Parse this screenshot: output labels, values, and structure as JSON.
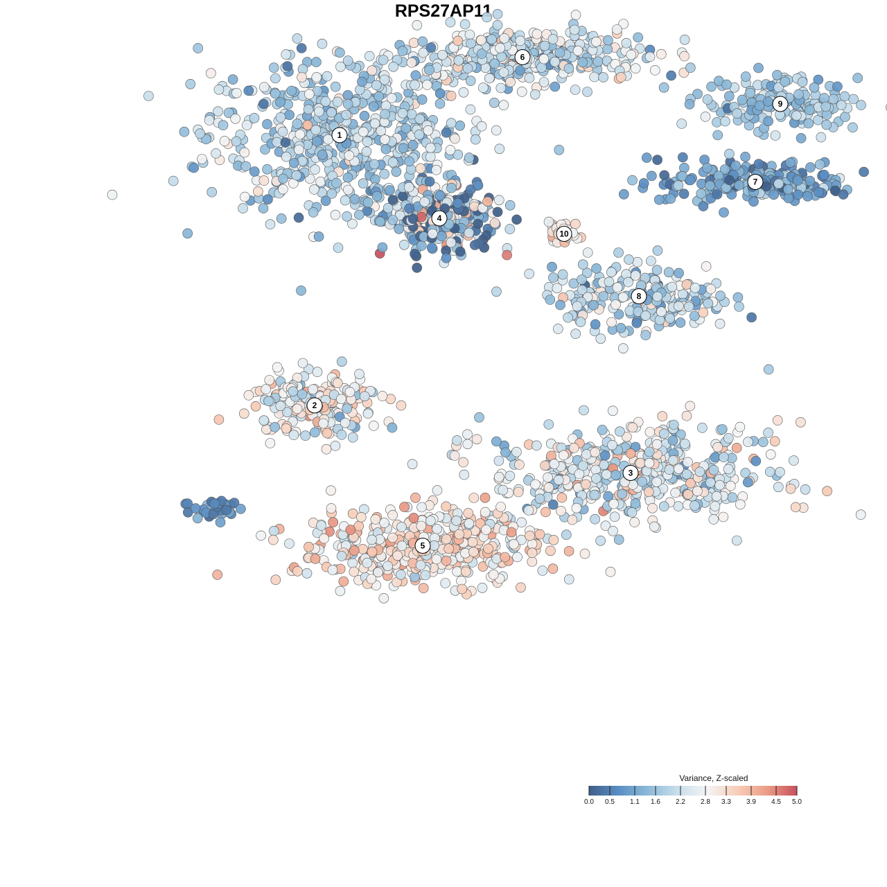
{
  "chart_data": {
    "type": "scatter",
    "title": "RPS27AP11",
    "subtitle": "",
    "xlabel": "",
    "ylabel": "",
    "grid": false,
    "axes_visible": false,
    "color_variable": "Variance, Z-scaled",
    "color_range": [
      0.0,
      5.0
    ],
    "legend": {
      "title": "Variance, Z-scaled",
      "placement": "bottom-right",
      "ticks": [
        "0.0",
        "0.5",
        "1.1",
        "1.6",
        "2.2",
        "2.8",
        "3.3",
        "3.9",
        "4.5",
        "5.0"
      ],
      "tick_values": [
        0.0,
        0.5,
        1.1,
        1.6,
        2.2,
        2.8,
        3.3,
        3.9,
        4.5,
        5.0
      ]
    },
    "colorscale": [
      "#3f5f8a",
      "#5b8fc4",
      "#8dbad9",
      "#c9dfec",
      "#f4f4f4",
      "#f7cdb8",
      "#eb9c85",
      "#c6505e"
    ],
    "clusters": [
      {
        "label": "1",
        "x": -1.0,
        "y": 6.6,
        "sx": 1.3,
        "sy": 1.2,
        "n": 560,
        "mean": 1.9,
        "spread": 0.6
      },
      {
        "label": "6",
        "x": 1.2,
        "y": 8.1,
        "sx": 1.2,
        "sy": 0.45,
        "n": 380,
        "mean": 2.2,
        "spread": 0.6
      },
      {
        "label": "9",
        "x": 4.3,
        "y": 7.2,
        "sx": 0.75,
        "sy": 0.4,
        "n": 160,
        "mean": 1.6,
        "spread": 0.4
      },
      {
        "label": "7",
        "x": 4.0,
        "y": 5.7,
        "sx": 1.0,
        "sy": 0.35,
        "n": 210,
        "mean": 1.0,
        "spread": 0.5
      },
      {
        "label": "4",
        "x": 0.2,
        "y": 5.0,
        "sx": 0.55,
        "sy": 0.55,
        "n": 260,
        "mean": 1.4,
        "spread": 1.5
      },
      {
        "label": "10",
        "x": 1.7,
        "y": 4.7,
        "sx": 0.15,
        "sy": 0.2,
        "n": 30,
        "mean": 3.2,
        "spread": 0.4
      },
      {
        "label": "8",
        "x": 2.6,
        "y": 3.5,
        "sx": 0.9,
        "sy": 0.55,
        "n": 200,
        "mean": 2.0,
        "spread": 0.7
      },
      {
        "label": "2",
        "x": -1.3,
        "y": 1.4,
        "sx": 0.65,
        "sy": 0.5,
        "n": 190,
        "mean": 2.7,
        "spread": 0.7
      },
      {
        "label": "3",
        "x": 2.5,
        "y": 0.1,
        "sx": 1.4,
        "sy": 0.75,
        "n": 460,
        "mean": 2.4,
        "spread": 0.7
      },
      {
        "label": "5",
        "x": 0.0,
        "y": -1.3,
        "sx": 1.2,
        "sy": 0.6,
        "n": 430,
        "mean": 3.1,
        "spread": 0.6
      },
      {
        "label": "",
        "x": -2.5,
        "y": -0.6,
        "sx": 0.3,
        "sy": 0.2,
        "n": 35,
        "mean": 0.8,
        "spread": 0.4
      }
    ]
  }
}
